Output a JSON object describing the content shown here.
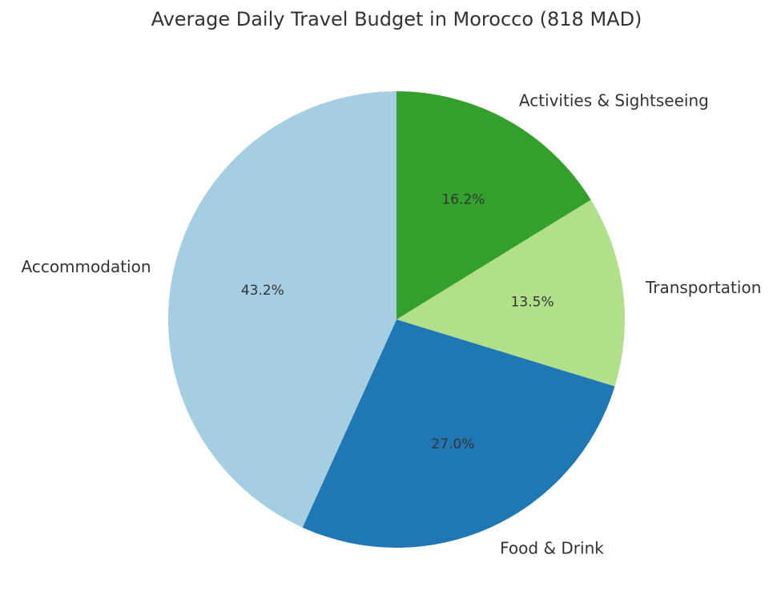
{
  "chart_data": {
    "type": "pie",
    "title": "Average Daily Travel Budget in Morocco (818 MAD)",
    "start_angle_deg": 90,
    "direction": "clockwise",
    "legend": "none",
    "slices": [
      {
        "label": "Activities & Sightseeing",
        "value": 16.2,
        "pct_label": "16.2%",
        "color": "#33a02c"
      },
      {
        "label": "Transportation",
        "value": 13.5,
        "pct_label": "13.5%",
        "color": "#b2df8a"
      },
      {
        "label": "Food & Drink",
        "value": 27.0,
        "pct_label": "27.0%",
        "color": "#1f78b4"
      },
      {
        "label": "Accommodation",
        "value": 43.2,
        "pct_label": "43.2%",
        "color": "#a6cee3"
      }
    ]
  }
}
